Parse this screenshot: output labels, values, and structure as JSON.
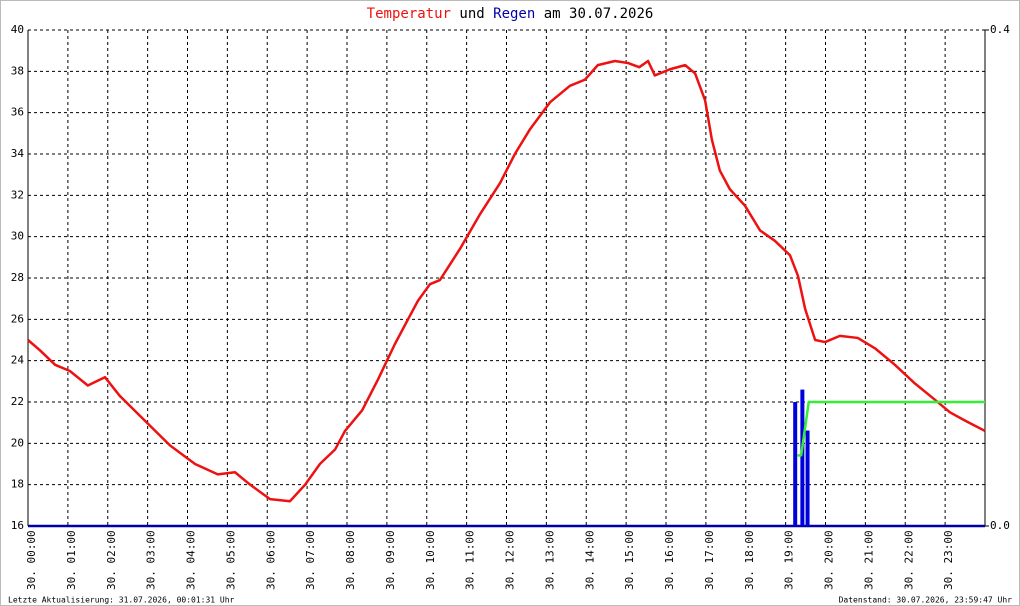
{
  "chart_data": {
    "type": "line",
    "title_joiner": "und",
    "title_date": "am 30.07.2026",
    "xlim": [
      0,
      24
    ],
    "xticks": [
      {
        "value": 0,
        "label": "30. 00:00"
      },
      {
        "value": 1,
        "label": "30. 01:00"
      },
      {
        "value": 2,
        "label": "30. 02:00"
      },
      {
        "value": 3,
        "label": "30. 03:00"
      },
      {
        "value": 4,
        "label": "30. 04:00"
      },
      {
        "value": 5,
        "label": "30. 05:00"
      },
      {
        "value": 6,
        "label": "30. 06:00"
      },
      {
        "value": 7,
        "label": "30. 07:00"
      },
      {
        "value": 8,
        "label": "30. 08:00"
      },
      {
        "value": 9,
        "label": "30. 09:00"
      },
      {
        "value": 10,
        "label": "30. 10:00"
      },
      {
        "value": 11,
        "label": "30. 11:00"
      },
      {
        "value": 12,
        "label": "30. 12:00"
      },
      {
        "value": 13,
        "label": "30. 13:00"
      },
      {
        "value": 14,
        "label": "30. 14:00"
      },
      {
        "value": 15,
        "label": "30. 15:00"
      },
      {
        "value": 16,
        "label": "30. 16:00"
      },
      {
        "value": 17,
        "label": "30. 17:00"
      },
      {
        "value": 18,
        "label": "30. 18:00"
      },
      {
        "value": 19,
        "label": "30. 19:00"
      },
      {
        "value": 20,
        "label": "30. 20:00"
      },
      {
        "value": 21,
        "label": "30. 21:00"
      },
      {
        "value": 22,
        "label": "30. 22:00"
      },
      {
        "value": 23,
        "label": "30. 23:00"
      }
    ],
    "ylim": [
      16,
      40
    ],
    "yticks": [
      16,
      18,
      20,
      22,
      24,
      26,
      28,
      30,
      32,
      34,
      36,
      38,
      40
    ],
    "y2lim": [
      0,
      0.4
    ],
    "y2ticks": [
      {
        "value": 0,
        "label": "0.0"
      },
      0.4
    ],
    "grid": true,
    "series": [
      {
        "name": "Temperatur",
        "color": "#ee1111",
        "x": [
          0,
          0.3,
          0.68,
          1.05,
          1.5,
          1.93,
          2.3,
          2.93,
          3.56,
          4.19,
          4.76,
          5.19,
          5.57,
          6.07,
          6.57,
          6.95,
          7.32,
          7.7,
          7.95,
          8.38,
          8.78,
          9.2,
          9.53,
          9.78,
          10.08,
          10.33,
          10.83,
          11.34,
          11.84,
          12.21,
          12.59,
          13.09,
          13.59,
          13.97,
          14.29,
          14.72,
          15.05,
          15.33,
          15.55,
          15.72,
          16.1,
          16.48,
          16.73,
          16.98,
          17.15,
          17.35,
          17.6,
          17.98,
          18.36,
          18.73,
          19.11,
          19.31,
          19.49,
          19.74,
          19.99,
          20.36,
          20.81,
          21.24,
          21.74,
          22.24,
          22.75,
          23.12,
          23.5,
          24
        ],
        "values": [
          25.0,
          24.5,
          23.8,
          23.5,
          22.8,
          23.2,
          22.3,
          21.1,
          19.9,
          19.0,
          18.5,
          18.6,
          18.0,
          17.3,
          17.2,
          18.0,
          19.0,
          19.7,
          20.6,
          21.6,
          23.1,
          24.8,
          26.0,
          26.9,
          27.7,
          27.9,
          29.4,
          31.1,
          32.6,
          34.0,
          35.2,
          36.5,
          37.3,
          37.6,
          38.3,
          38.5,
          38.4,
          38.2,
          38.5,
          37.8,
          38.1,
          38.3,
          37.9,
          36.6,
          34.7,
          33.2,
          32.3,
          31.5,
          30.3,
          29.8,
          29.1,
          28.1,
          26.5,
          25.0,
          24.9,
          25.2,
          25.1,
          24.6,
          23.8,
          22.9,
          22.1,
          21.5,
          21.1,
          20.6
        ]
      },
      {
        "name": "Regen",
        "type": "bar",
        "axis": "y2",
        "color": "#0000dd",
        "x": [
          19.24,
          19.42,
          19.55
        ],
        "values": [
          0.1,
          0.11,
          0.077
        ]
      },
      {
        "type": "line",
        "axis": "y2",
        "color": "#33ee33",
        "x": [
          19.29,
          19.39,
          19.58,
          24
        ],
        "values": [
          0.057,
          0.057,
          0.1,
          0.1
        ]
      }
    ],
    "footer_left": "Letzte Aktualisierung: 31.07.2026, 00:01:31 Uhr",
    "footer_right": "Datenstand: 30.07.2026, 23:59:47 Uhr"
  }
}
